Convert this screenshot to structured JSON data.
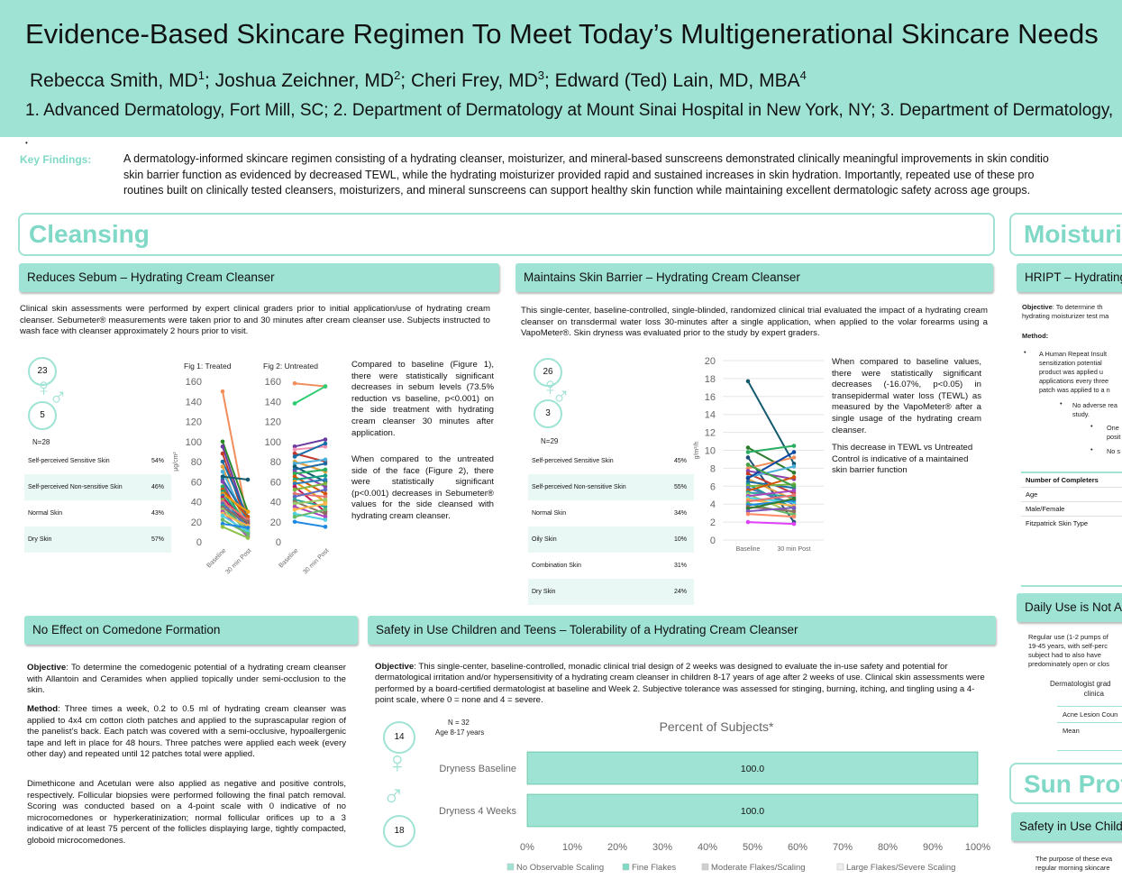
{
  "header": {
    "title": "Evidence-Based Skincare Regimen To Meet Today’s Multigenerational Skincare Needs",
    "authors": "Rebecca Smith, MD1; Joshua Zeichner, MD2; Cheri Frey, MD3; Edward (Ted) Lain, MD, MBA4",
    "affiliations": "1. Advanced Dermatology, Fort Mill, SC; 2. Department of Dermatology at Mount Sinai Hospital in New York, NY; 3. Department of Dermatology,"
  },
  "key_findings": {
    "label": "Key Findings:",
    "line1": "A dermatology-informed skincare regimen consisting of a hydrating cleanser, moisturizer, and mineral-based sunscreens demonstrated clinically meaningful improvements in skin conditio",
    "line2": "skin barrier function as evidenced by decreased TEWL, while the hydrating moisturizer provided rapid and sustained increases in skin hydration. Importantly, repeated use of these pro",
    "line3": "routines built on clinically tested cleansers, moisturizers, and mineral sunscreens can support healthy skin function while maintaining excellent dermatologic safety across age groups."
  },
  "cleansing": {
    "title": "Cleansing",
    "sebum": {
      "heading": "Reduces Sebum – Hydrating Cream Cleanser",
      "intro": "Clinical skin assessments were performed by expert clinical graders prior to initial application/use of hydrating cream cleanser. Sebumeter® measurements were taken prior to and 30 minutes after cream cleanser use. Subjects instructed to wash face with cleanser approximately 2 hours prior to visit.",
      "female_n": "23",
      "male_n": "5",
      "total_n": "N=28",
      "skin_types": [
        {
          "label": "Self-perceived Sensitive Skin",
          "value": "54%"
        },
        {
          "label": "Self-perceived Non-sensitive Skin",
          "value": "46%"
        },
        {
          "label": "Normal Skin",
          "value": "43%"
        },
        {
          "label": "Dry Skin",
          "value": "57%"
        }
      ],
      "fig1_title": "Fig 1: Treated",
      "fig2_title": "Fig 2: Untreated",
      "y_unit": "µg/cm²",
      "text1": "Compared to baseline (Figure 1), there were statistically significant decreases in sebum levels (73.5% reduction vs baseline, p<0.001) on the side treatment with hydrating cream cleanser 30 minutes after application.",
      "text2": "When compared to the untreated side of the face (Figure 2), there were statistically significant (p<0.001) decreases in Sebumeter® values for the side cleansed with hydrating cream cleanser."
    },
    "barrier": {
      "heading": "Maintains Skin Barrier – Hydrating Cream Cleanser",
      "intro": "This single-center, baseline-controlled, single-blinded, randomized clinical trial evaluated the impact of a hydrating cream cleanser on transdermal water loss 30-minutes after a single application, when applied to the volar forearms using a VapoMeter®. Skin dryness was evaluated prior to the study by expert graders.",
      "female_n": "26",
      "male_n": "3",
      "total_n": "N=29",
      "skin_types": [
        {
          "label": "Self-perceived Sensitive Skin",
          "value": "45%"
        },
        {
          "label": "Self-perceived Non-sensitive Skin",
          "value": "55%"
        },
        {
          "label": "Normal Skin",
          "value": "34%"
        },
        {
          "label": "Oily Skin",
          "value": "10%"
        },
        {
          "label": "Combination Skin",
          "value": "31%"
        },
        {
          "label": "Dry Skin",
          "value": "24%"
        }
      ],
      "y_unit": "g/m²/h",
      "text1": "When compared to baseline values, there were statistically significant decreases (-16.07%, p<0.05) in transepidermal water loss (TEWL) as measured by the VapoMeter® after a single usage of the hydrating cream cleanser.",
      "text2": "This decrease in TEWL vs Untreated Control is indicative of a maintained skin barrier function"
    },
    "comedone": {
      "heading": "No Effect on Comedone Formation",
      "objective_label": "Objective",
      "objective": ": To determine the comedogenic potential of a hydrating cream cleanser with Allantoin and Ceramides when applied topically under semi-occlusion to the skin.",
      "method_label": "Method",
      "method": ": Three times a week, 0.2 to 0.5 ml of hydrating cream cleanser was applied to 4x4 cm cotton cloth patches and applied to the suprascapular region of the panelist’s back. Each patch was covered with a semi-occlusive, hypoallergenic tape and left in place for 48 hours. Three patches were applied each week (every other day) and repeated until 12 patches total were applied.",
      "controls": "Dimethicone and Acetulan were also applied as negative and positive controls, respectively. Follicular biopsies were performed following the final patch removal. Scoring was conducted based on a 4-point scale with 0 indicative of no microcomedones or hyperkeratinization; normal follicular orifices up to a 3 indicative of at least 75 percent of the follicles displaying large, tightly compacted, globoid microcomedones."
    },
    "safety": {
      "heading": "Safety in Use Children and Teens – Tolerability of a Hydrating Cream Cleanser",
      "objective_label": "Objective",
      "objective": ": This single-center, baseline-controlled, monadic clinical trial design of 2 weeks was designed to evaluate the in-use safety and potential for dermatological irritation and/or hypersensitivity of a hydrating cream cleanser in children 8-17 years of age after 2 weeks of use. Clinical skin assessments were performed by a board-certified dermatologist at baseline and Week 2. Subjective tolerance was assessed for stinging, burning, itching, and tingling using a 4-point scale, where 0 = none and 4 = severe.",
      "n_label": "N = 32",
      "age_label": "Age 8-17 years",
      "female_n": "14",
      "male_n": "18"
    }
  },
  "chart_data": [
    {
      "type": "line",
      "title": "Fig 1: Treated",
      "categories": [
        "Baseline",
        "30 min Post"
      ],
      "ylabel": "µg/cm²",
      "ylim": [
        0,
        160
      ],
      "yticks": [
        0,
        20,
        40,
        60,
        80,
        100,
        120,
        140,
        160
      ],
      "series": [
        {
          "values": [
            150,
            20
          ],
          "color": "#f28e5c"
        },
        {
          "values": [
            100,
            30
          ],
          "color": "#2b8a2b"
        },
        {
          "values": [
            95,
            20
          ],
          "color": "#6a3aa0"
        },
        {
          "values": [
            88,
            15
          ],
          "color": "#c0392b"
        },
        {
          "values": [
            80,
            25
          ],
          "color": "#1b6fa8"
        },
        {
          "values": [
            75,
            10
          ],
          "color": "#e6a23c"
        },
        {
          "values": [
            70,
            18
          ],
          "color": "#4ab0d9"
        },
        {
          "values": [
            65,
            62
          ],
          "color": "#145a6e"
        },
        {
          "values": [
            62,
            22
          ],
          "color": "#1f6aa5"
        },
        {
          "values": [
            60,
            8
          ],
          "color": "#8e44ad"
        },
        {
          "values": [
            55,
            14
          ],
          "color": "#27ae60"
        },
        {
          "values": [
            52,
            25
          ],
          "color": "#d35400"
        },
        {
          "values": [
            50,
            12
          ],
          "color": "#16a085"
        },
        {
          "values": [
            48,
            30
          ],
          "color": "#f39c12"
        },
        {
          "values": [
            46,
            10
          ],
          "color": "#2980b9"
        },
        {
          "values": [
            44,
            18
          ],
          "color": "#c2185b"
        },
        {
          "values": [
            42,
            6
          ],
          "color": "#7cb342"
        },
        {
          "values": [
            40,
            22
          ],
          "color": "#e57373"
        },
        {
          "values": [
            38,
            15
          ],
          "color": "#5c6bc0"
        },
        {
          "values": [
            36,
            9
          ],
          "color": "#26a69a"
        },
        {
          "values": [
            34,
            20
          ],
          "color": "#8d6e63"
        },
        {
          "values": [
            32,
            12
          ],
          "color": "#9ccc65"
        },
        {
          "values": [
            30,
            5
          ],
          "color": "#ab47bc"
        },
        {
          "values": [
            28,
            16
          ],
          "color": "#ffb74d"
        },
        {
          "values": [
            26,
            10
          ],
          "color": "#4dd0e1"
        },
        {
          "values": [
            22,
            8
          ],
          "color": "#66bb6a"
        },
        {
          "values": [
            18,
            14
          ],
          "color": "#1e88e5"
        },
        {
          "values": [
            15,
            4
          ],
          "color": "#8bc34a"
        }
      ]
    },
    {
      "type": "line",
      "title": "Fig 2: Untreated",
      "categories": [
        "Baseline",
        "30 min Post"
      ],
      "ylim": [
        0,
        160
      ],
      "yticks": [
        0,
        20,
        40,
        60,
        80,
        100,
        120,
        140,
        160
      ],
      "series": [
        {
          "values": [
            158,
            155
          ],
          "color": "#f28e5c"
        },
        {
          "values": [
            138,
            155
          ],
          "color": "#2ecc71"
        },
        {
          "values": [
            95,
            102
          ],
          "color": "#6a3aa0"
        },
        {
          "values": [
            92,
            95
          ],
          "color": "#f48fb1"
        },
        {
          "values": [
            88,
            80
          ],
          "color": "#c0392b"
        },
        {
          "values": [
            85,
            98
          ],
          "color": "#1b6fa8"
        },
        {
          "values": [
            80,
            70
          ],
          "color": "#e6a23c"
        },
        {
          "values": [
            78,
            82
          ],
          "color": "#4ab0d9"
        },
        {
          "values": [
            75,
            60
          ],
          "color": "#145a6e"
        },
        {
          "values": [
            72,
            78
          ],
          "color": "#1f6aa5"
        },
        {
          "values": [
            70,
            55
          ],
          "color": "#8e44ad"
        },
        {
          "values": [
            68,
            72
          ],
          "color": "#27ae60"
        },
        {
          "values": [
            65,
            48
          ],
          "color": "#d35400"
        },
        {
          "values": [
            62,
            66
          ],
          "color": "#16a085"
        },
        {
          "values": [
            60,
            40
          ],
          "color": "#f39c12"
        },
        {
          "values": [
            58,
            62
          ],
          "color": "#2980b9"
        },
        {
          "values": [
            55,
            30
          ],
          "color": "#c2185b"
        },
        {
          "values": [
            52,
            58
          ],
          "color": "#7cb342"
        },
        {
          "values": [
            48,
            45
          ],
          "color": "#e57373"
        },
        {
          "values": [
            45,
            52
          ],
          "color": "#5c6bc0"
        },
        {
          "values": [
            42,
            35
          ],
          "color": "#26a69a"
        },
        {
          "values": [
            40,
            28
          ],
          "color": "#8d6e63"
        },
        {
          "values": [
            38,
            42
          ],
          "color": "#9ccc65"
        },
        {
          "values": [
            35,
            25
          ],
          "color": "#ab47bc"
        },
        {
          "values": [
            32,
            38
          ],
          "color": "#ffb74d"
        },
        {
          "values": [
            28,
            22
          ],
          "color": "#4dd0e1"
        },
        {
          "values": [
            25,
            32
          ],
          "color": "#66bb6a"
        },
        {
          "values": [
            20,
            15
          ],
          "color": "#1e88e5"
        }
      ]
    },
    {
      "type": "line",
      "categories": [
        "Baseline",
        "30 min Post"
      ],
      "ylabel": "g/m²/h",
      "ylim": [
        0,
        20
      ],
      "yticks": [
        0,
        2,
        4,
        6,
        8,
        10,
        12,
        14,
        16,
        18,
        20
      ],
      "series": [
        {
          "values": [
            17.7,
            8.5
          ],
          "color": "#145a6e"
        },
        {
          "values": [
            10.3,
            7.5
          ],
          "color": "#2b7a2b"
        },
        {
          "values": [
            9.8,
            10.5
          ],
          "color": "#27ae60"
        },
        {
          "values": [
            9.2,
            2.0
          ],
          "color": "#1f4e79"
        },
        {
          "values": [
            8.0,
            9.2
          ],
          "color": "#f28e5c"
        },
        {
          "values": [
            7.7,
            6.8
          ],
          "color": "#8e44ad"
        },
        {
          "values": [
            7.4,
            5.2
          ],
          "color": "#c0392b"
        },
        {
          "values": [
            7.0,
            8.2
          ],
          "color": "#4ab0d9"
        },
        {
          "values": [
            6.8,
            4.5
          ],
          "color": "#e6a23c"
        },
        {
          "values": [
            6.5,
            5.8
          ],
          "color": "#1b6fa8"
        },
        {
          "values": [
            6.2,
            3.5
          ],
          "color": "#16a085"
        },
        {
          "values": [
            6.0,
            6.2
          ],
          "color": "#7cb342"
        },
        {
          "values": [
            5.8,
            4.0
          ],
          "color": "#5c6bc0"
        },
        {
          "values": [
            5.5,
            7.0
          ],
          "color": "#d35400"
        },
        {
          "values": [
            5.3,
            4.8
          ],
          "color": "#26a69a"
        },
        {
          "values": [
            5.1,
            3.0
          ],
          "color": "#9ccc65"
        },
        {
          "values": [
            4.9,
            5.5
          ],
          "color": "#ab47bc"
        },
        {
          "values": [
            4.7,
            4.2
          ],
          "color": "#4dd0e1"
        },
        {
          "values": [
            4.5,
            3.8
          ],
          "color": "#ffb74d"
        },
        {
          "values": [
            4.3,
            5.0
          ],
          "color": "#e57373"
        },
        {
          "values": [
            4.1,
            2.8
          ],
          "color": "#66bb6a"
        },
        {
          "values": [
            3.9,
            4.4
          ],
          "color": "#1e88e5"
        },
        {
          "values": [
            3.7,
            3.2
          ],
          "color": "#8d6e63"
        },
        {
          "values": [
            3.5,
            4.6
          ],
          "color": "#2e7d32"
        },
        {
          "values": [
            3.2,
            3.6
          ],
          "color": "#7e57c2"
        },
        {
          "values": [
            2.9,
            2.6
          ],
          "color": "#ff8a65"
        },
        {
          "values": [
            2.0,
            1.8
          ],
          "color": "#e040fb"
        },
        {
          "values": [
            6.9,
            9.8
          ],
          "color": "#0d47a1"
        },
        {
          "values": [
            8.4,
            6.0
          ],
          "color": "#43a047"
        }
      ]
    },
    {
      "type": "bar",
      "orientation": "horizontal",
      "stacked": true,
      "title": "Percent of Subjects*",
      "categories": [
        "Dryness Baseline",
        "Dryness 4 Weeks"
      ],
      "xlim": [
        0,
        100
      ],
      "xticks": [
        "0%",
        "10%",
        "20%",
        "30%",
        "40%",
        "50%",
        "60%",
        "70%",
        "80%",
        "90%",
        "100%"
      ],
      "series": [
        {
          "name": "No Observable Scaling",
          "values": [
            100.0,
            100.0
          ],
          "color": "#9fe3d5"
        },
        {
          "name": "Fine Flakes",
          "values": [
            0,
            0
          ],
          "color": "#7fd9c6"
        },
        {
          "name": "Moderate Flakes/Scaling",
          "values": [
            0,
            0
          ],
          "color": "#cfcfcf"
        },
        {
          "name": "Large Flakes/Severe Scaling",
          "values": [
            0,
            0
          ],
          "color": "#eeeeee"
        }
      ],
      "data_labels": [
        "100.0",
        "100.0"
      ],
      "legend": "bottom"
    }
  ],
  "moisturizing": {
    "title": "Moisturi",
    "hript": {
      "heading": "HRIPT – Hydrating",
      "objective_label": "Objective",
      "objective_line1": ": To determine th",
      "objective_line2": "hydrating moisturizer test ma",
      "method_label": "Method:",
      "bullet1_lines": [
        "A Human Repeat Insult",
        "sensitization potential",
        "product was applied u",
        "applications every three",
        "patch was applied to a n"
      ],
      "bullet2_lines": [
        "No adverse rea",
        "study."
      ],
      "bullet3_lines": [
        "One",
        "posit"
      ],
      "bullet4": "No s",
      "table_header": "Number of Completers",
      "table_rows": [
        "Age",
        "Male/Female",
        "Fitzpatrick Skin Type"
      ]
    },
    "daily": {
      "heading": "Daily Use is Not Ac",
      "text_lines": [
        "Regular use (1-2 pumps of",
        "19-45 years, with self-perc",
        "subject had to also have",
        "predominately open or clos"
      ],
      "grader_lines": [
        "Dermatologist grad",
        "clinica"
      ],
      "acne_label": "Acne Lesion Coun",
      "mean_label": "Mean"
    }
  },
  "sun": {
    "title": "Sun Prot",
    "heading": "Safety in Use Childr",
    "text_lines": [
      "The purpose of these eva",
      "regular morning skincare"
    ]
  }
}
